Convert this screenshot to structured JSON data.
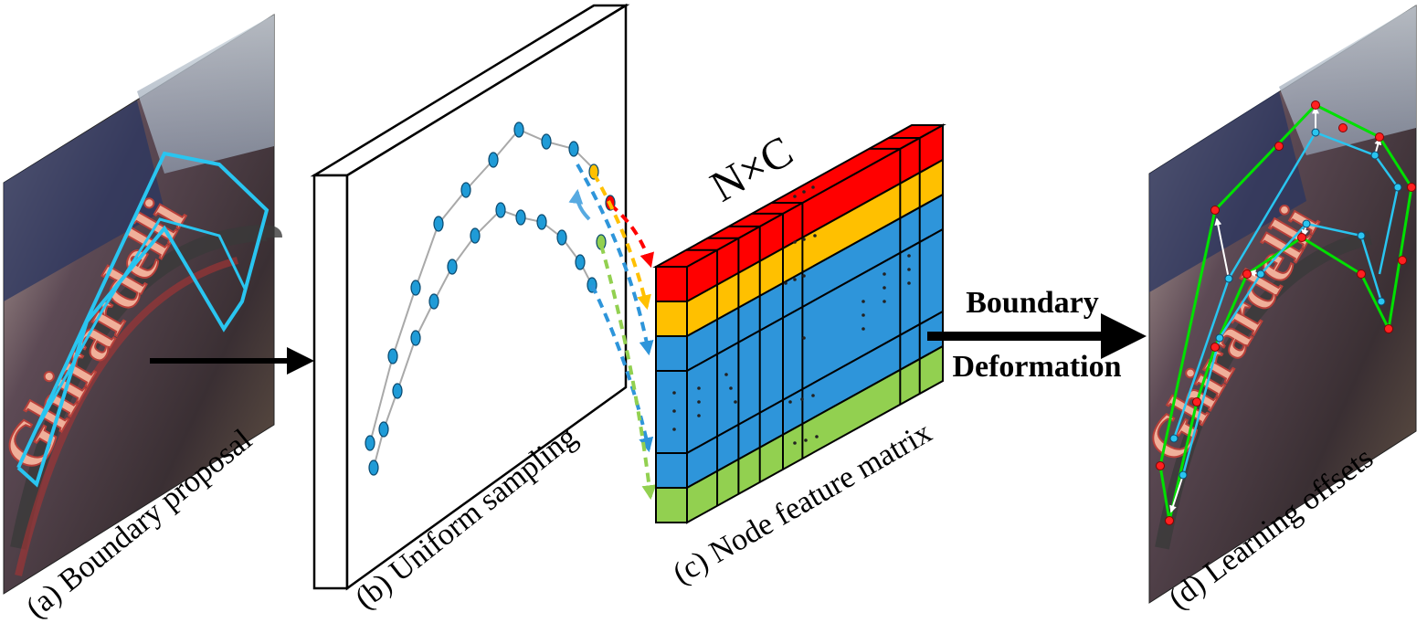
{
  "panels": {
    "a": {
      "label": "(a) Boundary  proposal"
    },
    "b": {
      "label": "(b) Uniform sampling"
    },
    "c": {
      "label": "(c) Node feature matrix",
      "dim_label": "N×C"
    },
    "d": {
      "label": "(d) Learning offsets"
    }
  },
  "arrow": {
    "line1": "Boundary",
    "line2": "Deformation"
  },
  "photo_text": "Ghirardelli",
  "colors": {
    "cyan": "#29c5f0",
    "blue": "#1f8fd6",
    "red": "#ff0000",
    "orange": "#ffc000",
    "cellblue": "#2e95da",
    "green": "#92d050",
    "offsetgreen": "#00e000"
  },
  "matrix": {
    "row_colors": [
      "red",
      "orange",
      "blue",
      "blue",
      "blue",
      "green"
    ]
  }
}
